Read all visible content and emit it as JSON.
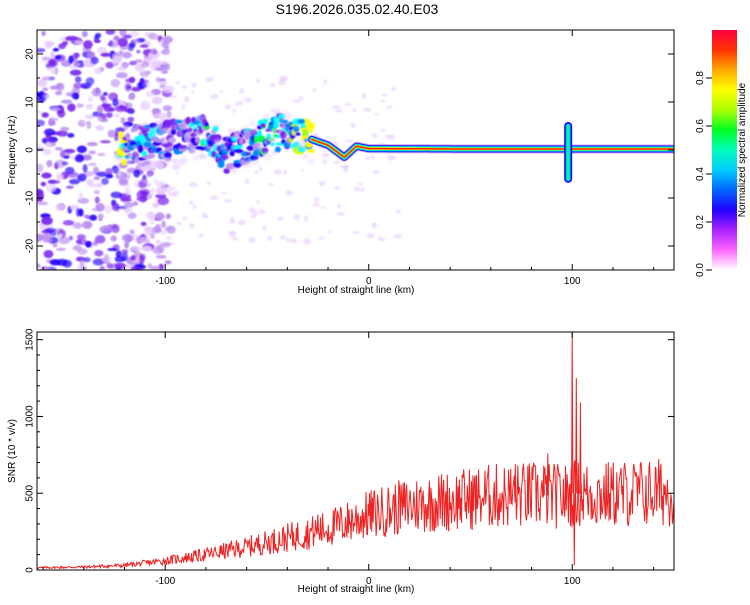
{
  "title": "S196.2026.035.02.40.E03",
  "colors": {
    "snr_line": "#ee2222",
    "axis": "#000000",
    "background": "#ffffff",
    "colormap_stops": [
      "#ffffff",
      "#e8ccff",
      "#b88af0",
      "#7722ee",
      "#2200ff",
      "#0088ff",
      "#00ffff",
      "#00ff44",
      "#aaff00",
      "#ffff00",
      "#ffaa00",
      "#ff2200",
      "#ff00cc"
    ]
  },
  "chart_data": [
    {
      "type": "heatmap",
      "title": "S196.2026.035.02.40.E03",
      "xlabel": "Height of straight line (km)",
      "ylabel": "Frequency (Hz)",
      "xlim": [
        -163,
        150
      ],
      "ylim": [
        -25,
        25
      ],
      "xticks": [
        -100,
        0,
        100
      ],
      "xtick_labels": [
        "-100",
        "0",
        "100"
      ],
      "yticks": [
        -20,
        -10,
        0,
        10,
        20
      ],
      "ytick_labels": [
        "-20",
        "-10",
        "0",
        "10",
        "20"
      ],
      "colorbar": {
        "label": "Normalized spectral amplitude",
        "range": [
          0,
          1
        ],
        "ticks": [
          0,
          0.2,
          0.4,
          0.6,
          0.8
        ],
        "tick_labels": [
          "0.0",
          "0.2",
          "0.4",
          "0.6",
          "0.8"
        ],
        "placement": "right"
      },
      "description_of_features": {
        "noise_region_x": [
          -163,
          -105
        ],
        "ridge_points": [
          {
            "x": -120,
            "y": 1,
            "amp": 0.3
          },
          {
            "x": -105,
            "y": 2,
            "amp": 0.35
          },
          {
            "x": -90,
            "y": 2.5,
            "amp": 0.3
          },
          {
            "x": -80,
            "y": 4,
            "amp": 0.4
          },
          {
            "x": -70,
            "y": -1,
            "amp": 0.3
          },
          {
            "x": -60,
            "y": 1,
            "amp": 0.35
          },
          {
            "x": -50,
            "y": 3,
            "amp": 0.4
          },
          {
            "x": -40,
            "y": 4,
            "amp": 0.35
          },
          {
            "x": -30,
            "y": 2.5,
            "amp": 0.9
          },
          {
            "x": -20,
            "y": 1,
            "amp": 0.8
          },
          {
            "x": -12,
            "y": -1.5,
            "amp": 0.5
          },
          {
            "x": -6,
            "y": 0.8,
            "amp": 0.7
          },
          {
            "x": 0,
            "y": 0.3,
            "amp": 0.8
          },
          {
            "x": 50,
            "y": 0.2,
            "amp": 0.95
          },
          {
            "x": 100,
            "y": 0.2,
            "amp": 0.9
          },
          {
            "x": 150,
            "y": 0.2,
            "amp": 0.9
          }
        ],
        "spike_x": 98
      }
    },
    {
      "type": "line",
      "xlabel": "Height of straight line (km)",
      "ylabel": "SNR (10 * v/v)",
      "xlim": [
        -163,
        150
      ],
      "ylim": [
        0,
        1550
      ],
      "xticks": [
        -100,
        0,
        100
      ],
      "xtick_labels": [
        "-100",
        "0",
        "100"
      ],
      "yticks": [
        0,
        500,
        1000,
        1500
      ],
      "ytick_labels": [
        "0",
        "500",
        "1000",
        "1500"
      ],
      "grid": false,
      "series": [
        {
          "trend": {
            "x": [
              -163,
              -140,
              -120,
              -100,
              -80,
              -60,
              -40,
              -20,
              0,
              20,
              40,
              60,
              80,
              97,
              100,
              110,
              130,
              150
            ],
            "y": [
              15,
              20,
              30,
              60,
              100,
              150,
              210,
              270,
              360,
              420,
              450,
              480,
              490,
              480,
              500,
              490,
              500,
              510
            ]
          },
          "spikes": [
            {
              "x": 100,
              "y": 1550
            },
            {
              "x": 101,
              "y": 30
            },
            {
              "x": 102,
              "y": 1250
            },
            {
              "x": 104,
              "y": 1090
            },
            {
              "x": 88,
              "y": 760
            },
            {
              "x": 86,
              "y": 680
            },
            {
              "x": -25,
              "y": 360
            },
            {
              "x": 72,
              "y": 690
            }
          ]
        }
      ]
    }
  ]
}
